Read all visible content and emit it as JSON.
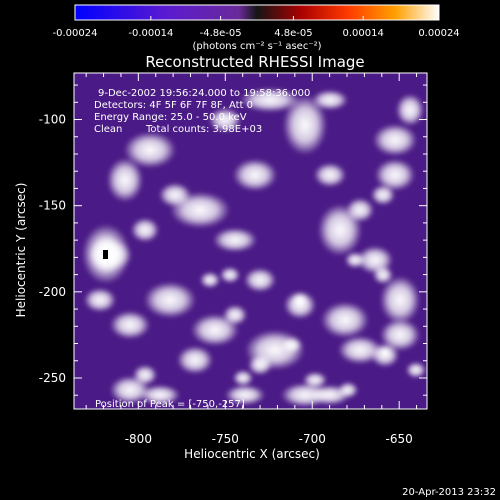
{
  "colorbar": {
    "tick_labels": [
      "-0.00024",
      "-0.00014",
      "-4.8e-05",
      "4.8e-05",
      "0.00014",
      "0.00024"
    ],
    "tick_values": [
      -0.00024,
      -0.00014,
      -4.8e-05,
      4.8e-05,
      0.00014,
      0.00024
    ],
    "range": [
      -0.00024,
      0.00024
    ],
    "unit_label": "(photons cm⁻² s⁻¹ asec⁻²)"
  },
  "plot": {
    "title": "Reconstructed RHESSI Image",
    "xlabel": "Heliocentric X (arcsec)",
    "ylabel": "Heliocentric Y (arcsec)",
    "xlim": [
      -837,
      -634
    ],
    "ylim": [
      -268,
      -73
    ],
    "x_ticks": [
      "-800",
      "-750",
      "-700",
      "-650"
    ],
    "x_tick_values": [
      -800,
      -750,
      -700,
      -650
    ],
    "y_ticks": [
      "-100",
      "-150",
      "-200",
      "-250"
    ],
    "y_tick_values": [
      -100,
      -150,
      -200,
      -250
    ]
  },
  "annotation": {
    "time_range": "9-Dec-2002 19:56:24.000 to 19:58:36.000",
    "detectors": "Detectors: 4F 5F 6F 7F 8F, Att 0",
    "energy_range": "Energy Range: 25.0 - 50.0 keV",
    "clean_label": "Clean",
    "total_counts": "Total counts: 3.98E+03",
    "peak_position": "Position of Peak = [-750,-257]"
  },
  "footer": {
    "timestamp": "20-Apr-2013 23:32"
  },
  "colors": {
    "background": "#000000",
    "foreground": "#ffffff",
    "map_base": "#4a1a86"
  }
}
